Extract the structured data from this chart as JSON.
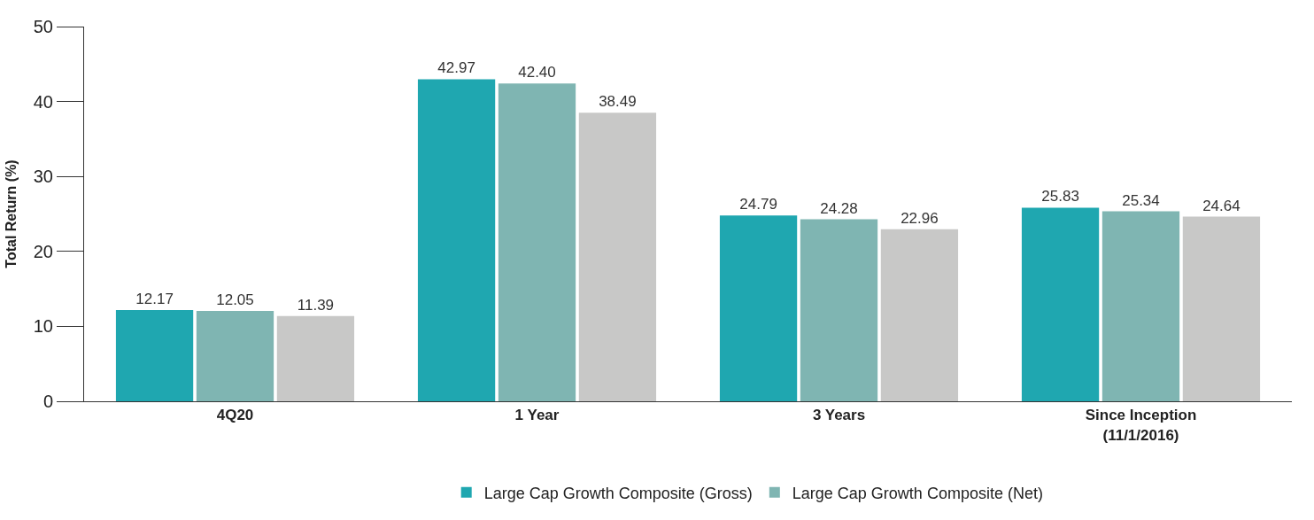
{
  "chart_data": {
    "type": "bar",
    "ylabel": "Total Return (%)",
    "categories": [
      "4Q20",
      "1 Year",
      "3 Years",
      "Since Inception\n(11/1/2016)"
    ],
    "series": [
      {
        "name": "Large Cap Growth Composite (Gross)",
        "color": "#1fa7b0",
        "values": [
          12.17,
          42.97,
          24.79,
          25.83
        ],
        "value_labels": [
          "12.17",
          "42.97",
          "24.79",
          "25.83"
        ]
      },
      {
        "name": "Large Cap Growth Composite (Net)",
        "color": "#7fb5b2",
        "values": [
          12.05,
          42.4,
          24.28,
          25.34
        ],
        "value_labels": [
          "12.05",
          "42.40",
          "24.28",
          "25.34"
        ]
      },
      {
        "color": "#c8c8c7",
        "values": [
          11.39,
          38.49,
          22.96,
          24.64
        ],
        "value_labels": [
          "11.39",
          "38.49",
          "22.96",
          "24.64"
        ]
      }
    ],
    "ylim": [
      0,
      50
    ],
    "yticks": [
      0,
      10,
      20,
      30,
      40,
      50
    ],
    "legend": "bottom"
  }
}
